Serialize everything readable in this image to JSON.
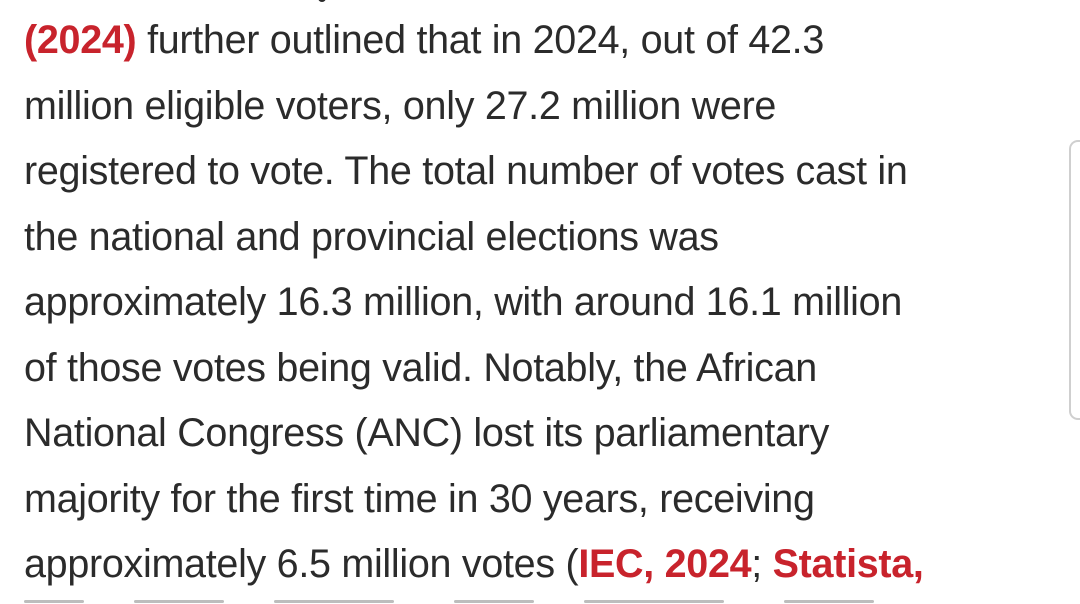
{
  "article": {
    "line1": {
      "cite": "(2024)",
      "text": " further outlined that in 2024, out of 42.3"
    },
    "line2": "million eligible voters, only 27.2 million were",
    "line3": "registered to vote. The total number of votes cast in",
    "line4": "the national and provincial elections was",
    "line5": "approximately 16.3 million, with around 16.1 million",
    "line6": "of those votes being valid. Notably, the African",
    "line7": "National Congress (ANC) lost its parliamentary",
    "line8": "majority for the first time in 30 years, receiving",
    "line9": {
      "text": "approximately 6.5 million votes (",
      "cite1": "IEC, 2024",
      "sep": "; ",
      "cite2": "Statista,"
    }
  },
  "colors": {
    "body_text": "#2b2b2b",
    "citation": "#c8232c",
    "background": "#ffffff"
  }
}
